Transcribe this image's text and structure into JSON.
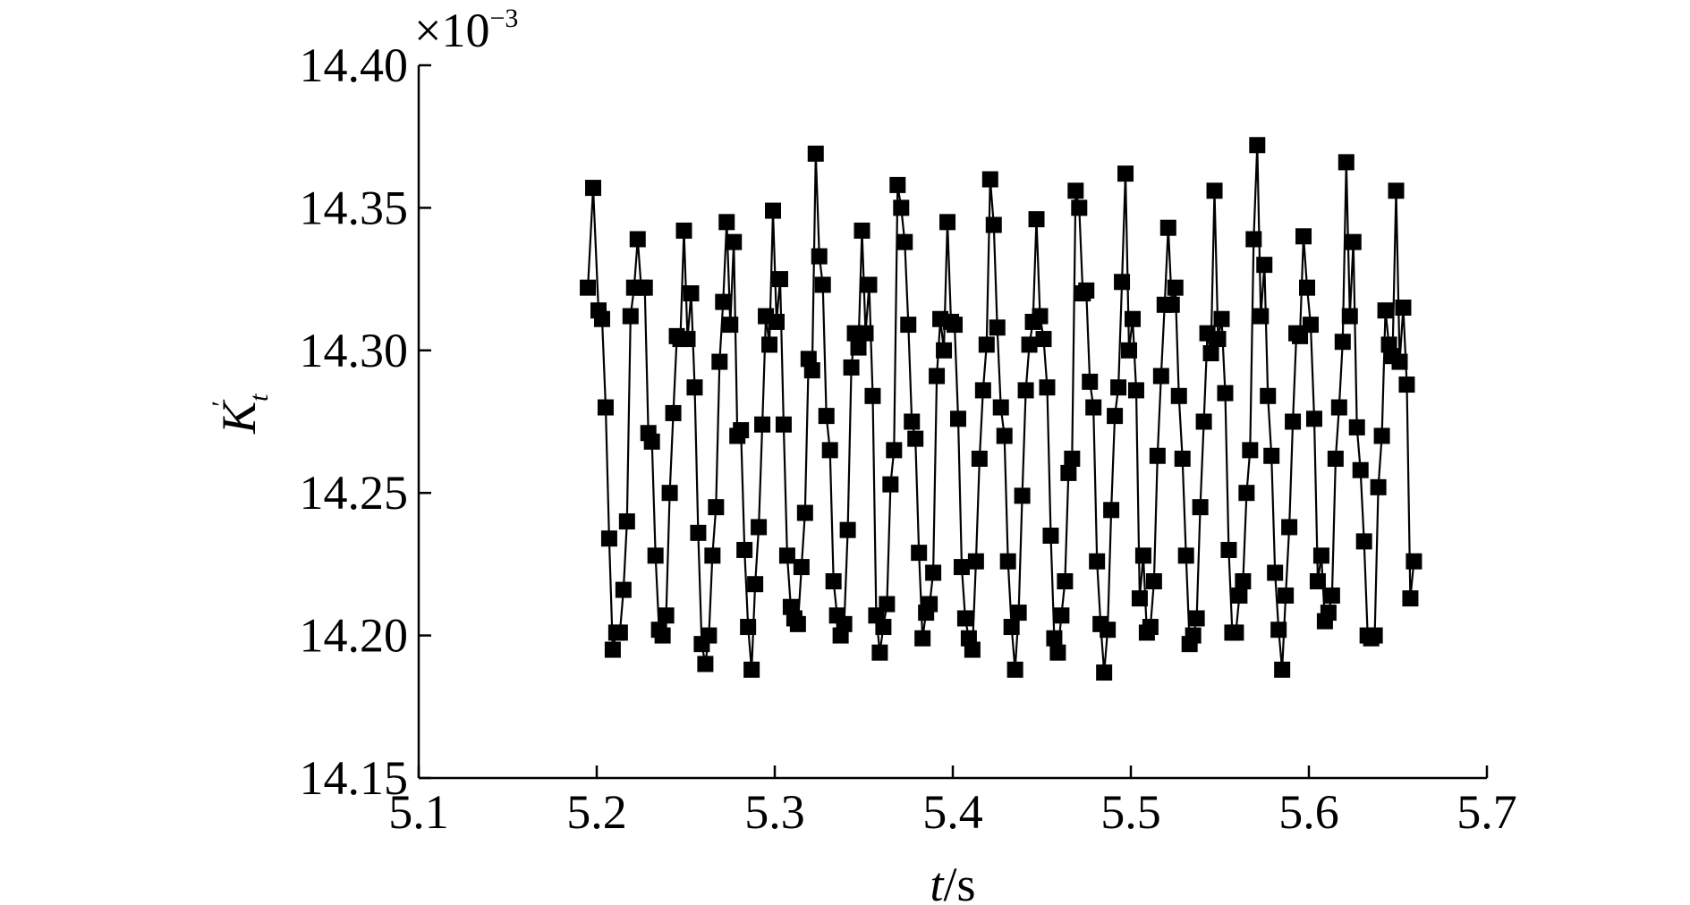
{
  "chart_data": {
    "type": "line",
    "title": "",
    "xlabel": "t/s",
    "ylabel": "K_t'",
    "xlabel_parts": {
      "symbol": "t",
      "unit": "/s"
    },
    "ylabel_parts": {
      "symbol": "K",
      "subscript": "t",
      "prime": "′"
    },
    "y_multiplier": {
      "times": "×",
      "base": "10",
      "exponent": "−3"
    },
    "xlim": [
      5.1,
      5.7
    ],
    "ylim": [
      14.15,
      14.4
    ],
    "x_ticks": [
      5.1,
      5.2,
      5.3,
      5.4,
      5.5,
      5.6,
      5.7
    ],
    "x_tick_labels": [
      "5.1",
      "5.2",
      "5.3",
      "5.4",
      "5.5",
      "5.6",
      "5.7"
    ],
    "y_ticks": [
      14.15,
      14.2,
      14.25,
      14.3,
      14.35,
      14.4
    ],
    "y_tick_labels": [
      "14.15",
      "14.20",
      "14.25",
      "14.30",
      "14.35",
      "14.40"
    ],
    "grid": false,
    "colors": {
      "series": "#000000",
      "marker": "#000000"
    },
    "marker": "square",
    "series": [
      {
        "x": [
          5.195,
          5.198,
          5.201,
          5.203,
          5.205,
          5.207,
          5.209,
          5.211,
          5.213,
          5.215,
          5.217,
          5.219,
          5.221,
          5.223,
          5.225,
          5.227,
          5.229,
          5.231,
          5.233,
          5.235,
          5.237,
          5.239,
          5.241,
          5.243,
          5.245,
          5.247,
          5.249,
          5.251,
          5.253,
          5.255,
          5.257,
          5.259,
          5.261,
          5.263,
          5.265,
          5.267,
          5.269,
          5.271,
          5.273,
          5.275,
          5.277,
          5.279,
          5.281,
          5.283,
          5.285,
          5.287,
          5.289,
          5.291,
          5.293,
          5.295,
          5.297,
          5.299,
          5.301,
          5.303,
          5.305,
          5.307,
          5.309,
          5.311,
          5.313,
          5.315,
          5.317,
          5.319,
          5.321,
          5.323,
          5.325,
          5.327,
          5.329,
          5.331,
          5.333,
          5.335,
          5.337,
          5.339,
          5.341,
          5.343,
          5.345,
          5.347,
          5.349,
          5.351,
          5.353,
          5.355,
          5.357,
          5.359,
          5.361,
          5.363,
          5.365,
          5.367,
          5.369,
          5.371,
          5.373,
          5.375,
          5.377,
          5.379,
          5.381,
          5.383,
          5.385,
          5.387,
          5.389,
          5.391,
          5.393,
          5.395,
          5.397,
          5.399,
          5.401,
          5.403,
          5.405,
          5.407,
          5.409,
          5.411,
          5.413,
          5.415,
          5.417,
          5.419,
          5.421,
          5.423,
          5.425,
          5.427,
          5.429,
          5.431,
          5.433,
          5.435,
          5.437,
          5.439,
          5.441,
          5.443,
          5.445,
          5.447,
          5.449,
          5.451,
          5.453,
          5.455,
          5.457,
          5.459,
          5.461,
          5.463,
          5.465,
          5.467,
          5.469,
          5.471,
          5.473,
          5.475,
          5.477,
          5.479,
          5.481,
          5.483,
          5.485,
          5.487,
          5.489,
          5.491,
          5.493,
          5.495,
          5.497,
          5.499,
          5.501,
          5.503,
          5.505,
          5.507,
          5.509,
          5.511,
          5.513,
          5.515,
          5.517,
          5.519,
          5.521,
          5.523,
          5.525,
          5.527,
          5.529,
          5.531,
          5.533,
          5.535,
          5.537,
          5.539,
          5.541,
          5.543,
          5.545,
          5.547,
          5.549,
          5.551,
          5.553,
          5.555,
          5.557,
          5.559,
          5.561,
          5.563,
          5.565,
          5.567,
          5.569,
          5.571,
          5.573,
          5.575,
          5.577,
          5.579,
          5.581,
          5.583,
          5.585,
          5.587,
          5.589,
          5.591,
          5.593,
          5.595,
          5.597,
          5.599,
          5.601,
          5.603,
          5.605,
          5.607,
          5.609,
          5.611,
          5.613,
          5.615,
          5.617,
          5.619,
          5.621,
          5.623,
          5.625,
          5.627,
          5.629,
          5.631,
          5.633,
          5.635,
          5.637,
          5.639,
          5.641,
          5.643,
          5.645,
          5.647,
          5.649,
          5.651,
          5.653,
          5.655,
          5.657,
          5.659
        ],
        "y": [
          14.322,
          14.357,
          14.314,
          14.311,
          14.28,
          14.234,
          14.195,
          14.201,
          14.201,
          14.216,
          14.24,
          14.312,
          14.322,
          14.339,
          14.322,
          14.322,
          14.271,
          14.268,
          14.228,
          14.202,
          14.2,
          14.207,
          14.25,
          14.278,
          14.305,
          14.304,
          14.342,
          14.304,
          14.32,
          14.287,
          14.236,
          14.197,
          14.19,
          14.2,
          14.228,
          14.245,
          14.296,
          14.317,
          14.345,
          14.309,
          14.338,
          14.27,
          14.272,
          14.23,
          14.203,
          14.188,
          14.218,
          14.238,
          14.274,
          14.312,
          14.302,
          14.349,
          14.31,
          14.325,
          14.274,
          14.228,
          14.21,
          14.206,
          14.204,
          14.224,
          14.243,
          14.297,
          14.293,
          14.369,
          14.333,
          14.323,
          14.277,
          14.265,
          14.219,
          14.207,
          14.2,
          14.204,
          14.237,
          14.294,
          14.306,
          14.301,
          14.342,
          14.306,
          14.323,
          14.284,
          14.207,
          14.194,
          14.203,
          14.211,
          14.253,
          14.265,
          14.358,
          14.35,
          14.338,
          14.309,
          14.275,
          14.269,
          14.229,
          14.199,
          14.208,
          14.211,
          14.222,
          14.291,
          14.311,
          14.3,
          14.345,
          14.31,
          14.309,
          14.276,
          14.224,
          14.206,
          14.199,
          14.195,
          14.226,
          14.262,
          14.286,
          14.302,
          14.36,
          14.344,
          14.308,
          14.28,
          14.27,
          14.226,
          14.203,
          14.188,
          14.208,
          14.249,
          14.286,
          14.302,
          14.31,
          14.346,
          14.312,
          14.304,
          14.287,
          14.235,
          14.199,
          14.194,
          14.207,
          14.219,
          14.257,
          14.262,
          14.356,
          14.35,
          14.32,
          14.321,
          14.289,
          14.28,
          14.226,
          14.204,
          14.187,
          14.202,
          14.244,
          14.277,
          14.287,
          14.324,
          14.362,
          14.3,
          14.311,
          14.286,
          14.213,
          14.228,
          14.201,
          14.203,
          14.219,
          14.263,
          14.291,
          14.316,
          14.343,
          14.316,
          14.322,
          14.284,
          14.262,
          14.228,
          14.197,
          14.2,
          14.206,
          14.245,
          14.275,
          14.306,
          14.299,
          14.356,
          14.304,
          14.311,
          14.285,
          14.23,
          14.201,
          14.201,
          14.214,
          14.219,
          14.25,
          14.265,
          14.339,
          14.372,
          14.312,
          14.33,
          14.284,
          14.263,
          14.222,
          14.202,
          14.188,
          14.214,
          14.238,
          14.275,
          14.306,
          14.305,
          14.34,
          14.322,
          14.309,
          14.276,
          14.219,
          14.228,
          14.205,
          14.208,
          14.214,
          14.262,
          14.28,
          14.303,
          14.366,
          14.312,
          14.338,
          14.273,
          14.258,
          14.233,
          14.2,
          14.199,
          14.2,
          14.252,
          14.27,
          14.314,
          14.302,
          14.298,
          14.356,
          14.296,
          14.315,
          14.288,
          14.213,
          14.226
        ]
      }
    ]
  }
}
